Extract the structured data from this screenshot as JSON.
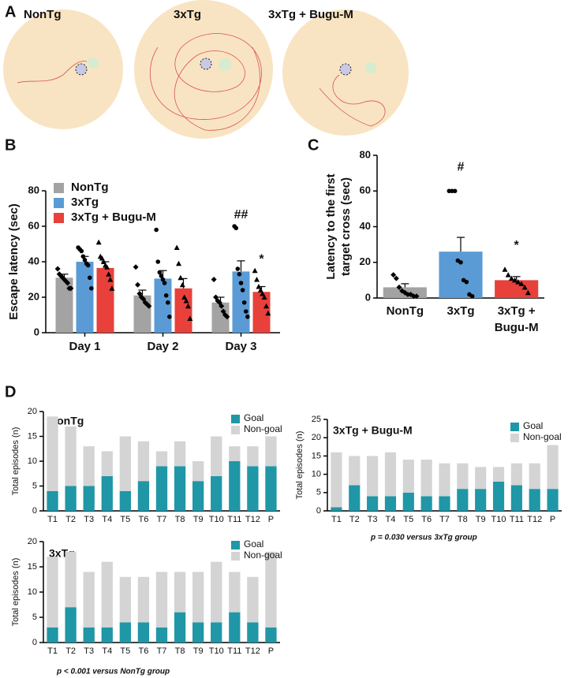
{
  "panel_a": {
    "panel": "A",
    "labels": [
      "NonTg",
      "3xTg",
      "3xTg + Bugu-M"
    ]
  },
  "chart_data": [
    {
      "type": "bar",
      "panel": "B",
      "ylabel": "Escape latency (sec)",
      "categories": [
        "Day 1",
        "Day 2",
        "Day 3"
      ],
      "ylim": [
        0,
        80
      ],
      "yticks": [
        0,
        20,
        40,
        60,
        80
      ],
      "series": [
        {
          "name": "NonTg",
          "color": "#a3a3a3",
          "marker": "diamond",
          "values": [
            31,
            21,
            17
          ],
          "errors": [
            2,
            3,
            3
          ],
          "annotations": [
            null,
            null,
            null
          ],
          "points": [
            [
              36,
              33,
              32,
              31,
              30,
              29,
              28,
              25,
              25
            ],
            [
              37,
              27,
              22,
              20,
              19,
              17,
              16,
              15
            ],
            [
              30,
              20,
              18,
              17,
              15,
              12,
              10,
              9
            ]
          ]
        },
        {
          "name": "3xTg",
          "color": "#5b9bd5",
          "marker": "circle",
          "values": [
            40,
            30.5,
            34.5
          ],
          "errors": [
            3,
            4.5,
            6
          ],
          "annotations": [
            null,
            null,
            "##"
          ],
          "points": [
            [
              48,
              47,
              46,
              43,
              41,
              39,
              38,
              31,
              25
            ],
            [
              58,
              40,
              34,
              32,
              30,
              28,
              21,
              17,
              9
            ],
            [
              60,
              59,
              36,
              33,
              28,
              24,
              17,
              12,
              9
            ]
          ]
        },
        {
          "name": "3xTg + Bugu-M",
          "color": "#e8403a",
          "marker": "triangle",
          "values": [
            36.5,
            25,
            23
          ],
          "errors": [
            3.5,
            5.5,
            3
          ],
          "annotations": [
            null,
            null,
            "*"
          ],
          "points": [
            [
              51,
              43,
              42,
              40,
              38,
              37,
              33,
              30,
              25
            ],
            [
              48,
              39,
              31,
              27,
              20,
              18,
              15,
              8
            ],
            [
              35,
              30,
              26,
              24,
              22,
              20,
              15,
              11
            ]
          ]
        }
      ]
    },
    {
      "type": "bar_single",
      "panel": "C",
      "ylabel": [
        "Latency to the first",
        "target cross (sec)"
      ],
      "categories": [
        [
          "NonTg"
        ],
        [
          "3xTg"
        ],
        [
          "3xTg +",
          "Bugu-M"
        ]
      ],
      "colors": [
        "#a3a3a3",
        "#5b9bd5",
        "#e8403a"
      ],
      "markers": [
        "diamond",
        "circle",
        "triangle"
      ],
      "values": [
        6,
        26,
        10
      ],
      "errors": [
        2,
        8,
        2
      ],
      "annotations": [
        null,
        "#",
        "*"
      ],
      "points": [
        [
          13,
          11,
          6,
          4,
          3,
          2,
          2,
          1,
          1
        ],
        [
          60,
          60,
          60,
          21,
          20,
          10,
          9,
          2,
          1
        ],
        [
          16,
          13,
          11,
          10,
          9,
          8,
          6,
          3
        ]
      ],
      "ylim": [
        0,
        80
      ],
      "yticks": [
        0,
        20,
        40,
        60,
        80
      ]
    },
    {
      "type": "stacked_bar",
      "panel": "D",
      "title": "NonTg",
      "ylabel": "Total episodes (n)",
      "categories": [
        "T1",
        "T2",
        "T3",
        "T4",
        "T5",
        "T6",
        "T7",
        "T8",
        "T9",
        "T10",
        "T11",
        "T12",
        "P"
      ],
      "ylim": [
        0,
        20
      ],
      "yticks": [
        0,
        5,
        10,
        15,
        20
      ],
      "series": [
        {
          "name": "Goal",
          "color": "#1f97a6",
          "values": [
            4,
            5,
            5,
            7,
            4,
            6,
            9,
            9,
            6,
            7,
            10,
            9,
            9
          ]
        },
        {
          "name": "Non-goal",
          "color": "#d4d4d4",
          "values": [
            15,
            12,
            8,
            5,
            11,
            8,
            3,
            5,
            4,
            8,
            3,
            4,
            6
          ]
        }
      ]
    },
    {
      "type": "stacked_bar",
      "title": "3xTg + Bugu-M",
      "ylabel": "Total episodes (n)",
      "note": "p = 0.030 versus 3xTg group",
      "categories": [
        "T1",
        "T2",
        "T3",
        "T4",
        "T5",
        "T6",
        "T7",
        "T8",
        "T9",
        "T10",
        "T11",
        "T12",
        "P"
      ],
      "ylim": [
        0,
        25
      ],
      "yticks": [
        0,
        5,
        10,
        15,
        20,
        25
      ],
      "series": [
        {
          "name": "Goal",
          "color": "#1f97a6",
          "values": [
            1,
            7,
            4,
            4,
            5,
            4,
            4,
            6,
            6,
            8,
            7,
            6,
            6
          ]
        },
        {
          "name": "Non-goal",
          "color": "#d4d4d4",
          "values": [
            15,
            8,
            11,
            12,
            9,
            10,
            9,
            7,
            6,
            4,
            6,
            7,
            12
          ]
        }
      ]
    },
    {
      "type": "stacked_bar",
      "title": "3xTg",
      "ylabel": "Total episodes (n)",
      "note": "p < 0.001 versus NonTg group",
      "categories": [
        "T1",
        "T2",
        "T3",
        "T4",
        "T5",
        "T6",
        "T7",
        "T8",
        "T9",
        "T10",
        "T11",
        "T12",
        "P"
      ],
      "ylim": [
        0,
        20
      ],
      "yticks": [
        0,
        5,
        10,
        15,
        20
      ],
      "series": [
        {
          "name": "Goal",
          "color": "#1f97a6",
          "values": [
            3,
            7,
            3,
            3,
            4,
            4,
            3,
            6,
            4,
            4,
            6,
            4,
            3
          ]
        },
        {
          "name": "Non-goal",
          "color": "#d4d4d4",
          "values": [
            14,
            11,
            11,
            13,
            9,
            9,
            11,
            8,
            10,
            12,
            8,
            9,
            15
          ]
        }
      ]
    }
  ]
}
